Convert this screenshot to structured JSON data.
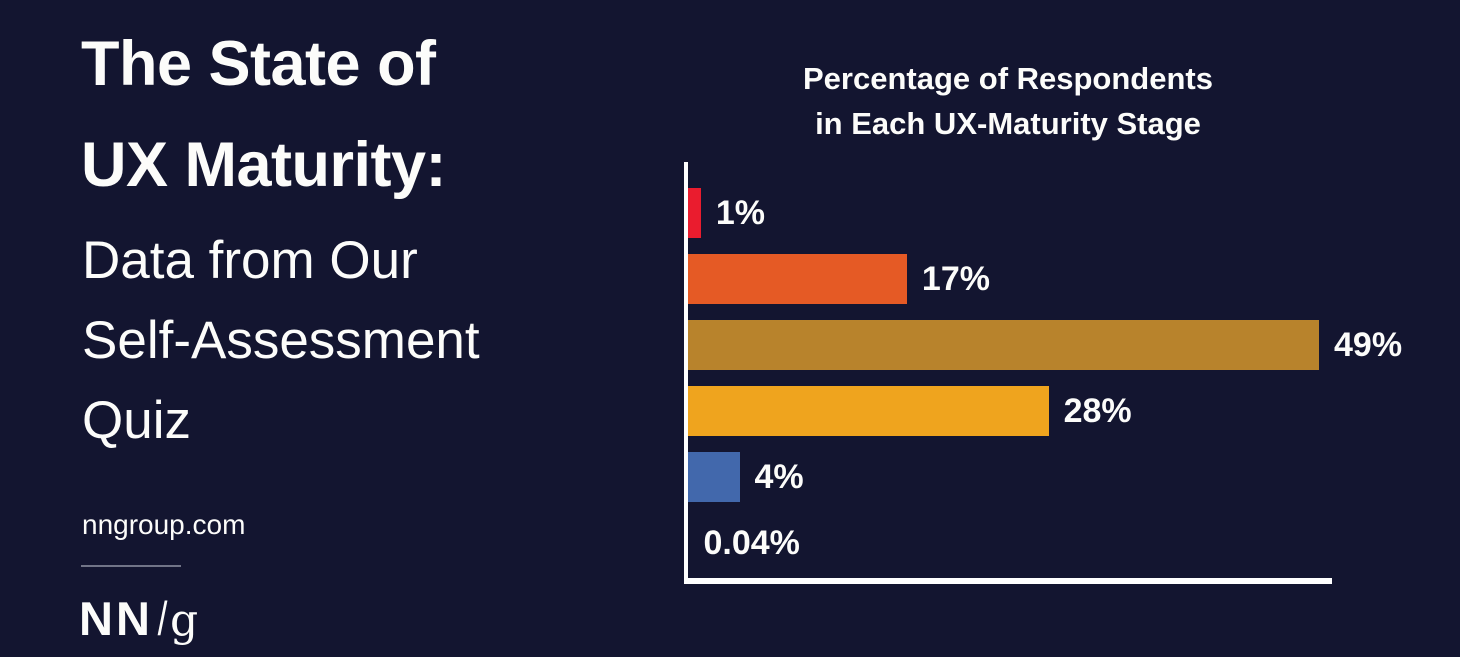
{
  "background_color": "#131530",
  "text_color": "#fcfcfa",
  "left_panel": {
    "title_lines": [
      "The State of",
      "UX Maturity:"
    ],
    "subtitle_lines": [
      "Data from Our",
      "Self-Assessment",
      "Quiz"
    ],
    "website": "nngroup.com",
    "logo": {
      "nn": "NN",
      "slash": "/",
      "g": "g"
    }
  },
  "chart": {
    "title_lines": [
      "Percentage of Respondents",
      "in Each UX-Maturity Stage"
    ],
    "axis_color": "#ffffff"
  },
  "chart_data": {
    "type": "bar",
    "orientation": "horizontal",
    "title": "Percentage of Respondents in Each UX-Maturity Stage",
    "values": [
      1,
      17,
      49,
      28,
      4,
      0.04
    ],
    "labels": [
      "1%",
      "17%",
      "49%",
      "28%",
      "4%",
      "0.04%"
    ],
    "bar_colors": [
      "#ea1c2e",
      "#e55a25",
      "#b8832c",
      "#efa41e",
      "#4268ac",
      "none"
    ],
    "value_suffix": "%",
    "xlim": [
      0,
      50
    ],
    "grid": false,
    "legend": false
  }
}
